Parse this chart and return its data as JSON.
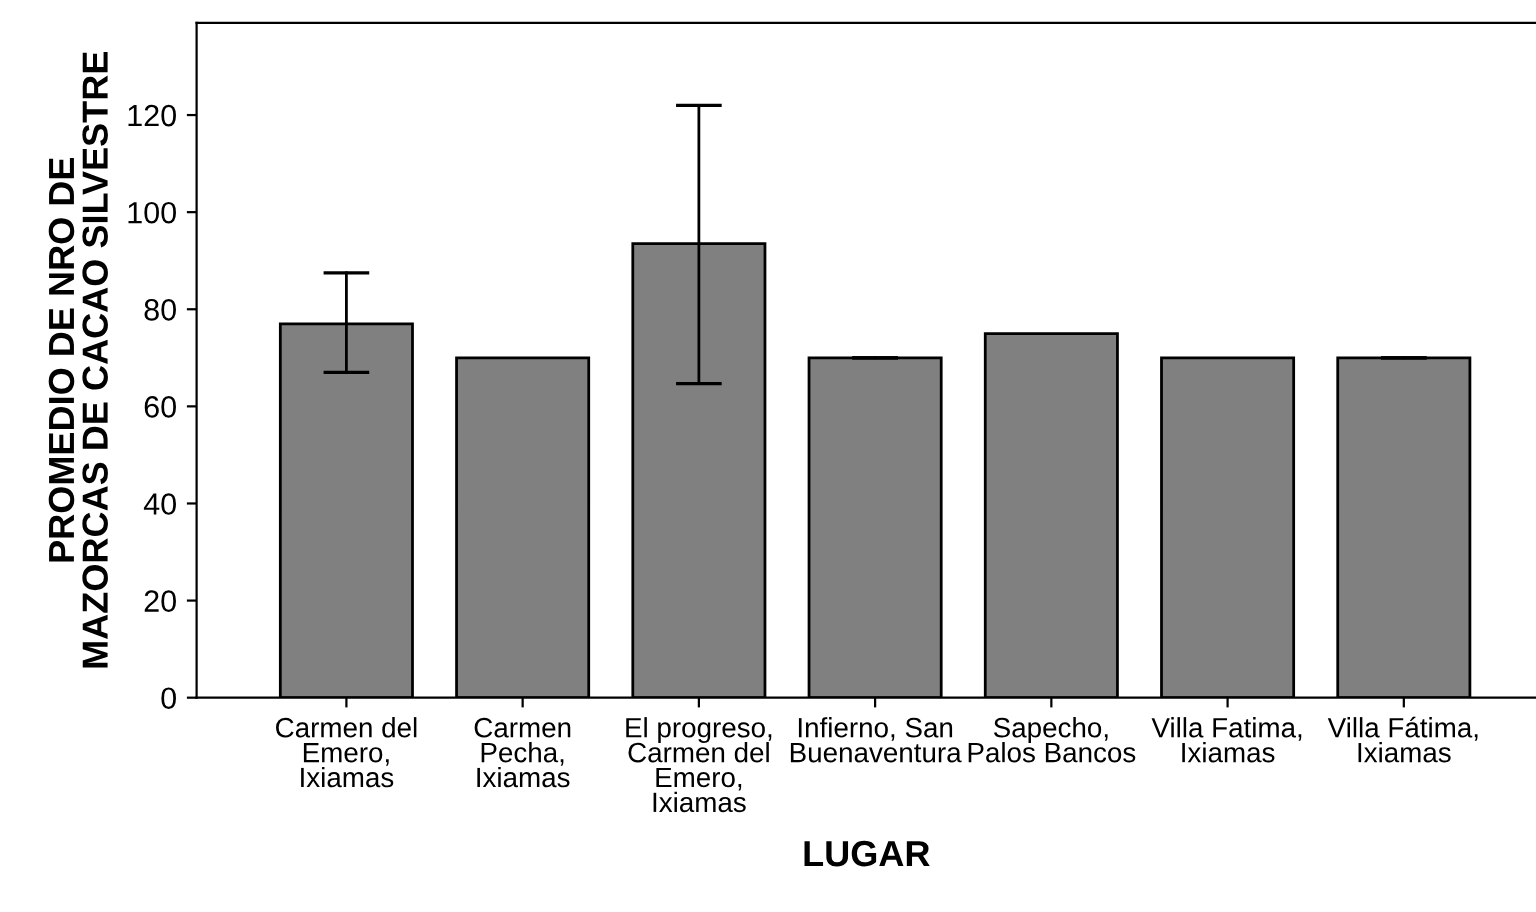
{
  "chart_data": {
    "type": "bar",
    "xlabel": "LUGAR",
    "ylabel": "PROMEDIO DE NRO DE\nMAZORCAS DE CACAO SILVESTRE",
    "categories": [
      "Carmen del\nEmero,\nIxiamas",
      "Carmen\nPecha,\nIxiamas",
      "El progreso,\nCarmen del\nEmero,\nIxiamas",
      "Infierno, San\nBuenaventura",
      "Sapecho,\nPalos Bancos",
      "Villa Fatima,\nIxiamas",
      "Villa Fátima,\nIxiamas"
    ],
    "values": [
      77,
      70,
      93.5,
      70,
      75,
      70,
      70
    ],
    "errors": [
      [
        67,
        87.5
      ],
      null,
      [
        64.7,
        122
      ],
      [
        70,
        70
      ],
      null,
      null,
      [
        70,
        70
      ]
    ],
    "color": "#808080",
    "ylim": [
      0,
      139
    ],
    "yticks": [
      0,
      20,
      40,
      60,
      80,
      100,
      120
    ],
    "grid": false,
    "legend": false
  }
}
